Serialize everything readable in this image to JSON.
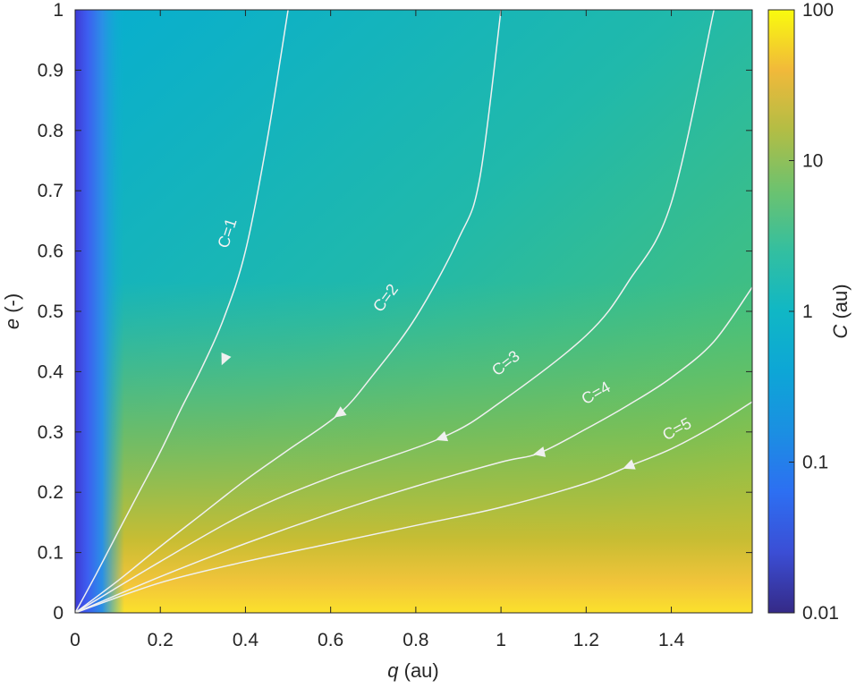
{
  "chart_data": {
    "type": "heatmap",
    "xlabel": {
      "symbol": "q",
      "unit": "(au)"
    },
    "ylabel": {
      "symbol": "e",
      "unit": "(-)"
    },
    "xlim": [
      0,
      1.59
    ],
    "ylim": [
      0,
      1
    ],
    "xticks": [
      "0",
      "0.2",
      "0.4",
      "0.6",
      "0.8",
      "1",
      "1.2",
      "1.4"
    ],
    "xtick_values": [
      0,
      0.2,
      0.4,
      0.6,
      0.8,
      1,
      1.2,
      1.4
    ],
    "yticks": [
      "0",
      "0.1",
      "0.2",
      "0.3",
      "0.4",
      "0.5",
      "0.6",
      "0.7",
      "0.8",
      "0.9",
      "1"
    ],
    "ytick_values": [
      0,
      0.1,
      0.2,
      0.3,
      0.4,
      0.5,
      0.6,
      0.7,
      0.8,
      0.9,
      1
    ],
    "colorbar": {
      "label": {
        "symbol": "C",
        "unit": "(au)"
      },
      "scale": "log",
      "range": [
        0.01,
        100
      ],
      "ticks": [
        "0.01",
        "0.1",
        "1",
        "10",
        "100"
      ],
      "tick_values": [
        0.01,
        0.1,
        1,
        10,
        100
      ],
      "colormap": "parula"
    },
    "contours": [
      {
        "label": "C=1",
        "x": [
          0,
          0.05,
          0.1,
          0.15,
          0.2,
          0.25,
          0.3,
          0.35,
          0.4,
          0.45,
          0.5
        ],
        "y": [
          0,
          0.065,
          0.133,
          0.2,
          0.267,
          0.34,
          0.41,
          0.49,
          0.6,
          0.78,
          1.0
        ]
      },
      {
        "label": "C=2",
        "x": [
          0,
          0.1,
          0.2,
          0.3,
          0.4,
          0.5,
          0.62,
          0.7,
          0.8,
          0.9,
          0.95,
          1.0
        ],
        "y": [
          0,
          0.053,
          0.11,
          0.165,
          0.22,
          0.27,
          0.33,
          0.395,
          0.49,
          0.62,
          0.72,
          1.0
        ]
      },
      {
        "label": "C=3",
        "x": [
          0,
          0.2,
          0.4,
          0.6,
          0.86,
          1.0,
          1.2,
          1.3,
          1.4,
          1.5
        ],
        "y": [
          0,
          0.085,
          0.165,
          0.225,
          0.29,
          0.35,
          0.46,
          0.55,
          0.68,
          1.0
        ]
      },
      {
        "label": "C=4",
        "x": [
          0,
          0.2,
          0.4,
          0.6,
          0.8,
          1.0,
          1.09,
          1.2,
          1.3,
          1.4,
          1.5,
          1.59
        ],
        "y": [
          0,
          0.06,
          0.115,
          0.165,
          0.21,
          0.25,
          0.265,
          0.305,
          0.345,
          0.39,
          0.45,
          0.54
        ]
      },
      {
        "label": "C=5",
        "x": [
          0,
          0.2,
          0.4,
          0.6,
          0.8,
          1.0,
          1.2,
          1.3,
          1.4,
          1.5,
          1.59
        ],
        "y": [
          0,
          0.05,
          0.085,
          0.115,
          0.145,
          0.175,
          0.215,
          0.243,
          0.272,
          0.31,
          0.35
        ]
      }
    ],
    "contour_labels": [
      {
        "text": "C=1",
        "x": 0.39,
        "y": 0.63
      },
      {
        "text": "C=2",
        "x": 0.76,
        "y": 0.52
      },
      {
        "text": "C=3",
        "x": 1.04,
        "y": 0.41
      },
      {
        "text": "C=4",
        "x": 1.25,
        "y": 0.36
      },
      {
        "text": "C=5",
        "x": 1.44,
        "y": 0.3
      }
    ],
    "arrows": [
      {
        "x": 0.35,
        "y": 0.42
      },
      {
        "x": 0.62,
        "y": 0.33
      },
      {
        "x": 0.86,
        "y": 0.29
      },
      {
        "x": 1.09,
        "y": 0.265
      },
      {
        "x": 1.3,
        "y": 0.243
      }
    ]
  }
}
